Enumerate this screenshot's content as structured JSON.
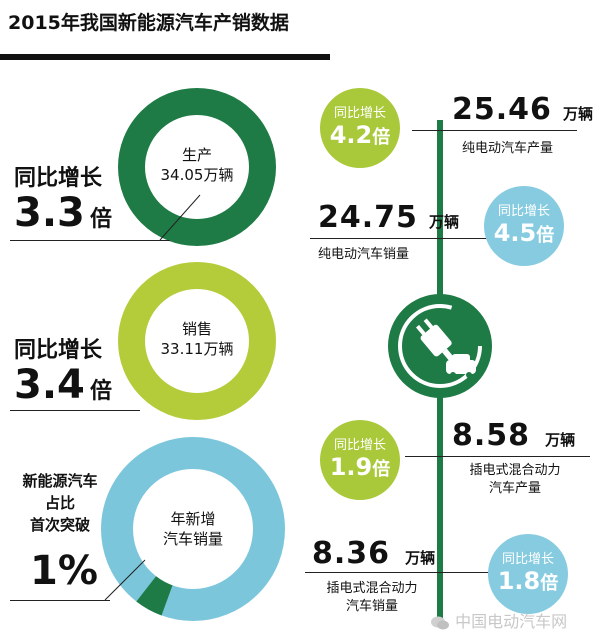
{
  "title": "2015年我国新能源汽车产销数据",
  "colors": {
    "dark_green": "#1e7b45",
    "lime": "#b4cc3a",
    "light_blue": "#7cc6dc",
    "badge_lime": "#a9c93a",
    "badge_blue": "#86cbe0"
  },
  "production": {
    "label": "生产",
    "value": "34.05万辆",
    "growth_label": "同比增长",
    "growth_value": "3.3",
    "growth_unit": "倍"
  },
  "sales": {
    "label": "销售",
    "value": "33.11万辆",
    "growth_label": "同比增长",
    "growth_value": "3.4",
    "growth_unit": "倍"
  },
  "share": {
    "line1": "新能源汽车",
    "line2": "占比",
    "line3": "首次突破",
    "value": "1%",
    "ring_label_1": "年新增",
    "ring_label_2": "汽车销量",
    "fraction": 0.01
  },
  "ev_production": {
    "value": "25.46",
    "unit": "万辆",
    "desc": "纯电动汽车产量",
    "badge_label": "同比增长",
    "badge_value": "4.2",
    "badge_unit": "倍"
  },
  "ev_sales": {
    "value": "24.75",
    "unit": "万辆",
    "desc": "纯电动汽车销量",
    "badge_label": "同比增长",
    "badge_value": "4.5",
    "badge_unit": "倍"
  },
  "phev_production": {
    "value": "8.58",
    "unit": "万辆",
    "desc1": "插电式混合动力",
    "desc2": "汽车产量",
    "badge_label": "同比增长",
    "badge_value": "1.9",
    "badge_unit": "倍"
  },
  "phev_sales": {
    "value": "8.36",
    "unit": "万辆",
    "desc1": "插电式混合动力",
    "desc2": "汽车销量",
    "badge_label": "同比增长",
    "badge_value": "1.8",
    "badge_unit": "倍"
  },
  "watermark": "中国电动汽车网",
  "icons": {
    "center": "ev-plug-car-icon",
    "watermark": "wechat-icon"
  }
}
